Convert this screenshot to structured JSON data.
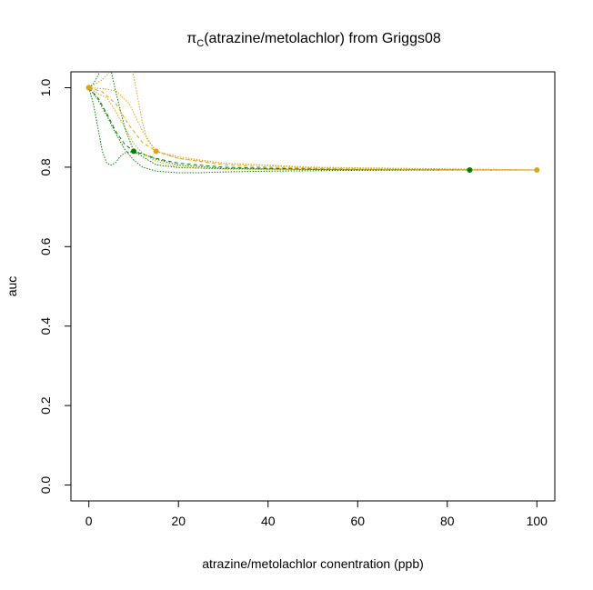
{
  "chart_data": {
    "type": "line",
    "title_prefix": "π",
    "title_subscript": "C",
    "title_rest": "(atrazine/metolachlor) from Griggs08",
    "xlabel": "atrazine/metolachlor conentration (ppb)",
    "ylabel": "auc",
    "xlim": [
      -4,
      104
    ],
    "ylim": [
      -0.04,
      1.04
    ],
    "xticks": [
      0,
      20,
      40,
      60,
      80,
      100
    ],
    "yticks": [
      0.0,
      0.2,
      0.4,
      0.6,
      0.8,
      1.0
    ],
    "xtick_labels": [
      "0",
      "20",
      "40",
      "60",
      "80",
      "100"
    ],
    "ytick_labels": [
      "0.0",
      "0.2",
      "0.4",
      "0.6",
      "0.8",
      "1.0"
    ],
    "grid": false,
    "legend": "none",
    "series": [
      {
        "color": "#008000",
        "points": {
          "x": [
            0,
            10,
            85
          ],
          "y": [
            1.0,
            0.84,
            0.793
          ]
        },
        "curves": [
          {
            "style": "dashed",
            "x": [
              0,
              2,
              4,
              6,
              8,
              10,
              15,
              20,
              30,
              40,
              50,
              60,
              70,
              85,
              100
            ],
            "y": [
              1.0,
              0.975,
              0.935,
              0.89,
              0.858,
              0.84,
              0.822,
              0.81,
              0.8,
              0.797,
              0.795,
              0.794,
              0.794,
              0.793,
              0.793
            ]
          },
          {
            "style": "dotted",
            "x": [
              0,
              1,
              2,
              3,
              4,
              5,
              6,
              8,
              10,
              15,
              20,
              30,
              40,
              60,
              85,
              100
            ],
            "y": [
              1.0,
              1.01,
              1.03,
              1.055,
              1.065,
              1.04,
              0.99,
              0.9,
              0.84,
              0.806,
              0.799,
              0.796,
              0.795,
              0.794,
              0.793,
              0.793
            ]
          },
          {
            "style": "dotted",
            "x": [
              0,
              1,
              2,
              3,
              4,
              5,
              6,
              7,
              8,
              10,
              12,
              15,
              20,
              30,
              50,
              85,
              100
            ],
            "y": [
              1.0,
              0.96,
              0.9,
              0.84,
              0.81,
              0.805,
              0.812,
              0.827,
              0.836,
              0.84,
              0.834,
              0.82,
              0.805,
              0.797,
              0.794,
              0.793,
              0.793
            ]
          },
          {
            "style": "dotted",
            "x": [
              0,
              2,
              4,
              6,
              8,
              10,
              12,
              15,
              20,
              25,
              30,
              40,
              60,
              85,
              100
            ],
            "y": [
              1.0,
              0.97,
              0.93,
              0.885,
              0.845,
              0.818,
              0.8,
              0.79,
              0.786,
              0.786,
              0.788,
              0.79,
              0.792,
              0.793,
              0.793
            ]
          }
        ]
      },
      {
        "color": "#DAA520",
        "points": {
          "x": [
            0,
            15,
            100
          ],
          "y": [
            1.0,
            0.84,
            0.793
          ]
        },
        "curves": [
          {
            "style": "dashed",
            "x": [
              0,
              3,
              6,
              9,
              12,
              15,
              20,
              30,
              40,
              50,
              60,
              70,
              85,
              100
            ],
            "y": [
              1.0,
              0.99,
              0.96,
              0.905,
              0.862,
              0.84,
              0.822,
              0.806,
              0.8,
              0.797,
              0.795,
              0.794,
              0.793,
              0.793
            ]
          },
          {
            "style": "dotted",
            "x": [
              0,
              3,
              5,
              7,
              8,
              9,
              10,
              11,
              12,
              13,
              15,
              20,
              30,
              50,
              100
            ],
            "y": [
              1.0,
              1.02,
              1.045,
              1.065,
              1.07,
              1.06,
              1.03,
              0.97,
              0.91,
              0.87,
              0.84,
              0.826,
              0.81,
              0.798,
              0.793
            ]
          },
          {
            "style": "dotted",
            "x": [
              0,
              2,
              4,
              6,
              8,
              10,
              12,
              15,
              20,
              30,
              50,
              100
            ],
            "y": [
              1.0,
              0.985,
              0.975,
              0.94,
              0.9,
              0.86,
              0.835,
              0.815,
              0.8,
              0.795,
              0.794,
              0.793
            ]
          },
          {
            "style": "dotted",
            "x": [
              0,
              3,
              6,
              9,
              12,
              15,
              20,
              30,
              50,
              100
            ],
            "y": [
              1.0,
              0.998,
              0.992,
              0.96,
              0.89,
              0.84,
              0.822,
              0.81,
              0.8,
              0.793
            ]
          }
        ]
      }
    ]
  }
}
